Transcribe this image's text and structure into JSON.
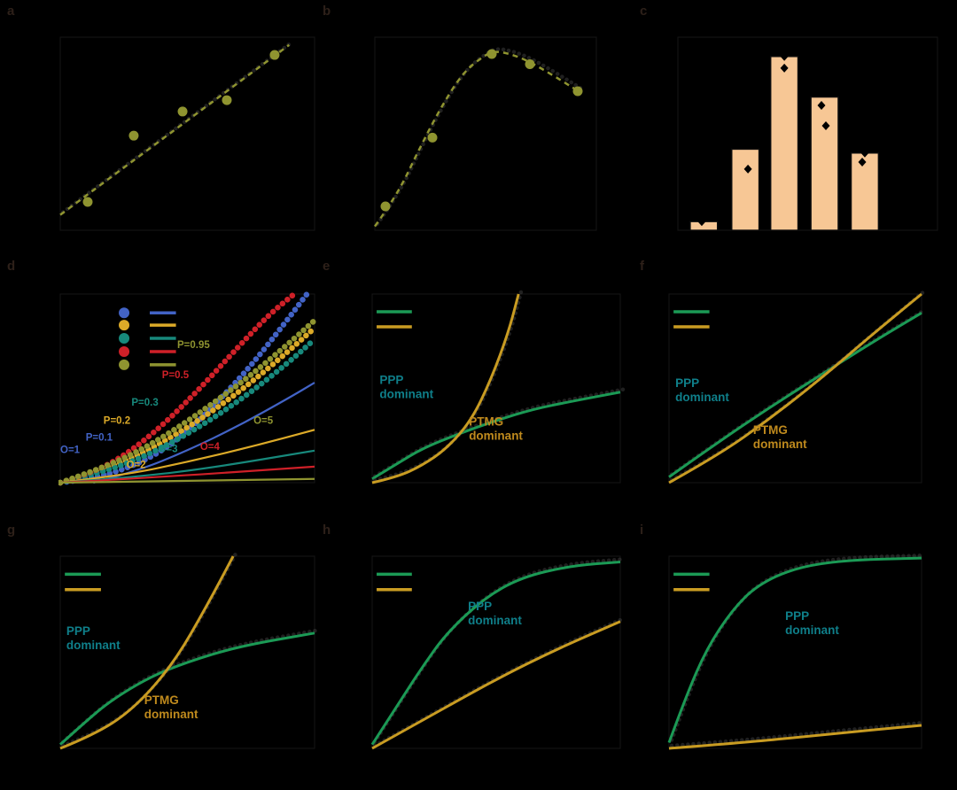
{
  "figure": {
    "background": "#000000",
    "frame_color": "#161616",
    "panel_letter_color": "#2d2019",
    "visibility_note": "Axis titles, tick labels and legend captions are rendered in black and are not visible against the black background; only colored graphics and colored text labels are visible."
  },
  "palette": {
    "olive": "#8f9430",
    "blue": "#4263c6",
    "yellow": "#dcaa28",
    "teal": "#17897c",
    "red": "#cf2028",
    "green_curve": "#1b9a55",
    "gold_curve": "#c99c22",
    "teal_label": "#0f7f8a",
    "gold_label": "#bf8a1d",
    "bar_fill": "#f7c795"
  },
  "chart_data": [
    {
      "panel": "a",
      "panel_letter": "a",
      "type": "scatter",
      "xlim": [
        0,
        1
      ],
      "ylim": [
        0,
        1
      ],
      "series": [
        {
          "name": "fit-line",
          "style": "line",
          "dash": "6 5",
          "ghost": true,
          "color": "#8f9430",
          "width": 2.5,
          "x": [
            0.0,
            0.45,
            0.9
          ],
          "y": [
            0.08,
            0.52,
            0.96
          ]
        },
        {
          "name": "data-points",
          "style": "markers",
          "color": "#8f9430",
          "size": 5.5,
          "x": [
            0.108,
            0.289,
            0.481,
            0.655,
            0.843
          ],
          "y": [
            0.147,
            0.49,
            0.615,
            0.674,
            0.908
          ]
        }
      ]
    },
    {
      "panel": "b",
      "panel_letter": "b",
      "type": "line",
      "xlim": [
        0,
        1
      ],
      "ylim": [
        0,
        1
      ],
      "series": [
        {
          "name": "kinetic-curve",
          "style": "line",
          "dash": "6 5",
          "ghost": true,
          "color": "#8f9430",
          "width": 2.5,
          "x": [
            0.0,
            0.1,
            0.2,
            0.3,
            0.4,
            0.5,
            0.55,
            0.65,
            0.75,
            0.85,
            0.92
          ],
          "y": [
            0.02,
            0.18,
            0.42,
            0.64,
            0.82,
            0.91,
            0.93,
            0.9,
            0.84,
            0.77,
            0.72
          ]
        },
        {
          "name": "data-points",
          "style": "markers",
          "color": "#8f9430",
          "size": 5.5,
          "x": [
            0.048,
            0.26,
            0.528,
            0.7,
            0.916
          ],
          "y": [
            0.124,
            0.48,
            0.913,
            0.86,
            0.72
          ]
        }
      ]
    },
    {
      "panel": "c",
      "panel_letter": "c",
      "type": "bar",
      "xlim": [
        0,
        1
      ],
      "ylim": [
        0,
        1
      ],
      "values": [
        0.045,
        0.42,
        0.9,
        0.69,
        0.4
      ],
      "bar_centers": [
        0.1,
        0.26,
        0.41,
        0.565,
        0.72
      ],
      "bar_width_frac": 0.105,
      "bar_color": "#f7c795",
      "bar_edge": "#0d0d0d",
      "point_marker": "diamond",
      "point_color": "#000000",
      "points": [
        {
          "x": 0.092,
          "y": 0.045
        },
        {
          "x": 0.27,
          "y": 0.317
        },
        {
          "x": 0.41,
          "y": 0.9
        },
        {
          "x": 0.41,
          "y": 0.84
        },
        {
          "x": 0.553,
          "y": 0.647
        },
        {
          "x": 0.57,
          "y": 0.541
        },
        {
          "x": 0.72,
          "y": 0.4
        },
        {
          "x": 0.71,
          "y": 0.353
        }
      ]
    },
    {
      "panel": "d",
      "panel_letter": "d",
      "type": "line",
      "xlim": [
        0,
        1
      ],
      "ylim": [
        0,
        1
      ],
      "series": [
        {
          "name": "blue-markers",
          "style": "dotline",
          "color": "#4263c6",
          "width": 6.5,
          "x": [
            0,
            0.12,
            0.25,
            0.38,
            0.5,
            0.62,
            0.75,
            0.88,
            0.97
          ],
          "y": [
            0,
            0.02,
            0.07,
            0.15,
            0.27,
            0.43,
            0.62,
            0.84,
            1.0
          ]
        },
        {
          "name": "yellow-markers",
          "style": "dotline",
          "color": "#dcaa28",
          "width": 6.5,
          "x": [
            0,
            0.15,
            0.3,
            0.45,
            0.6,
            0.75,
            0.9,
            1.0
          ],
          "y": [
            0,
            0.06,
            0.14,
            0.25,
            0.38,
            0.53,
            0.7,
            0.82
          ]
        },
        {
          "name": "teal-markers",
          "style": "dotline",
          "color": "#17897c",
          "width": 6.5,
          "x": [
            0,
            0.15,
            0.3,
            0.45,
            0.6,
            0.75,
            0.9,
            1.0
          ],
          "y": [
            0,
            0.05,
            0.12,
            0.22,
            0.34,
            0.48,
            0.64,
            0.76
          ]
        },
        {
          "name": "red-markers",
          "style": "dotline",
          "color": "#cf2028",
          "width": 6.5,
          "x": [
            0,
            0.12,
            0.25,
            0.4,
            0.55,
            0.7,
            0.82,
            0.92
          ],
          "y": [
            0,
            0.05,
            0.14,
            0.3,
            0.5,
            0.72,
            0.89,
            1.0
          ]
        },
        {
          "name": "olive-markers",
          "style": "dotline",
          "color": "#8f9430",
          "width": 6.5,
          "x": [
            0,
            0.15,
            0.3,
            0.45,
            0.6,
            0.75,
            0.9,
            1.0
          ],
          "y": [
            0,
            0.07,
            0.16,
            0.28,
            0.42,
            0.57,
            0.74,
            0.86
          ]
        },
        {
          "name": "blue-line",
          "style": "line",
          "color": "#4263c6",
          "width": 2.2,
          "x": [
            0.13,
            0.3,
            0.5,
            0.7,
            0.9,
            1.0
          ],
          "y": [
            0,
            0.06,
            0.17,
            0.3,
            0.45,
            0.53
          ]
        },
        {
          "name": "yellow-line",
          "style": "line",
          "color": "#dcaa28",
          "width": 2.2,
          "x": [
            0,
            0.25,
            0.5,
            0.75,
            1.0
          ],
          "y": [
            0,
            0.04,
            0.11,
            0.19,
            0.28
          ]
        },
        {
          "name": "teal-line",
          "style": "line",
          "color": "#17897c",
          "width": 2.2,
          "x": [
            0,
            0.3,
            0.6,
            1.0
          ],
          "y": [
            0,
            0.03,
            0.08,
            0.17
          ]
        },
        {
          "name": "red-line",
          "style": "line",
          "color": "#cf2028",
          "width": 2.2,
          "x": [
            0,
            0.4,
            1.0
          ],
          "y": [
            0,
            0.03,
            0.085
          ]
        },
        {
          "name": "olive-line",
          "style": "line",
          "color": "#8f9430",
          "width": 2.2,
          "x": [
            0,
            1.0
          ],
          "y": [
            0,
            0.02
          ]
        }
      ],
      "annotations": [
        {
          "text": "P=0.95",
          "color": "#8f9430",
          "x": 0.46,
          "y": 0.76
        },
        {
          "text": "P=0.5",
          "color": "#cf2028",
          "x": 0.4,
          "y": 0.6
        },
        {
          "text": "P=0.3",
          "color": "#17897c",
          "x": 0.28,
          "y": 0.455
        },
        {
          "text": "P=0.2",
          "color": "#dcaa28",
          "x": 0.17,
          "y": 0.36
        },
        {
          "text": "P=0.1",
          "color": "#4263c6",
          "x": 0.1,
          "y": 0.27
        },
        {
          "text": "O=1",
          "color": "#4263c6",
          "x": 0.0,
          "y": 0.205
        },
        {
          "text": "O=2",
          "color": "#dcaa28",
          "x": 0.26,
          "y": 0.125
        },
        {
          "text": "O=3",
          "color": "#17897c",
          "x": 0.385,
          "y": 0.21
        },
        {
          "text": "O=4",
          "color": "#cf2028",
          "x": 0.55,
          "y": 0.22
        },
        {
          "text": "O=5",
          "color": "#8f9430",
          "x": 0.76,
          "y": 0.36
        }
      ],
      "legend": {
        "style": "dots-and-lines",
        "dot_x": 0.251,
        "line_x": [
          0.352,
          0.455
        ],
        "rows_y": [
          0.9,
          0.835,
          0.765,
          0.695,
          0.625
        ],
        "colors": [
          "#4263c6",
          "#dcaa28",
          "#17897c",
          "#cf2028",
          "#8f9430"
        ]
      }
    },
    {
      "panel": "e",
      "panel_letter": "e",
      "type": "line",
      "xlim": [
        0,
        1
      ],
      "ylim": [
        0,
        1
      ],
      "series": [
        {
          "name": "green-curve",
          "style": "line",
          "ghost": true,
          "color": "#1b9a55",
          "width": 3,
          "x": [
            0,
            0.1,
            0.2,
            0.35,
            0.5,
            0.65,
            0.8,
            1.0
          ],
          "y": [
            0.02,
            0.1,
            0.18,
            0.26,
            0.33,
            0.39,
            0.43,
            0.48
          ]
        },
        {
          "name": "gold-curve",
          "style": "line",
          "ghost": true,
          "color": "#c99c22",
          "width": 3,
          "x": [
            0,
            0.1,
            0.2,
            0.3,
            0.4,
            0.48,
            0.55,
            0.59
          ],
          "y": [
            0.0,
            0.03,
            0.09,
            0.18,
            0.33,
            0.55,
            0.8,
            1.0
          ]
        }
      ],
      "labels": [
        {
          "lines": [
            "PPP",
            "dominant"
          ],
          "color": "#0f7f8a",
          "x": 0.03,
          "y": 0.58
        },
        {
          "lines": [
            "PTMG",
            "dominant"
          ],
          "color": "#bf8a1d",
          "x": 0.39,
          "y": 0.36
        }
      ],
      "legend": {
        "style": "lines",
        "x": [
          0.018,
          0.16
        ],
        "rows_y": [
          0.906,
          0.826
        ],
        "colors": [
          "#1b9a55",
          "#c99c22"
        ]
      }
    },
    {
      "panel": "f",
      "panel_letter": "f",
      "type": "line",
      "xlim": [
        0,
        1
      ],
      "ylim": [
        0,
        1
      ],
      "series": [
        {
          "name": "green-curve",
          "style": "line",
          "ghost": true,
          "color": "#1b9a55",
          "width": 3,
          "x": [
            0,
            0.2,
            0.4,
            0.6,
            0.8,
            1.0
          ],
          "y": [
            0.03,
            0.22,
            0.4,
            0.57,
            0.74,
            0.9
          ]
        },
        {
          "name": "gold-curve",
          "style": "line",
          "ghost": true,
          "color": "#c99c22",
          "width": 3,
          "x": [
            0,
            0.2,
            0.4,
            0.6,
            0.8,
            1.0
          ],
          "y": [
            0.0,
            0.15,
            0.34,
            0.55,
            0.78,
            1.0
          ]
        }
      ],
      "labels": [
        {
          "lines": [
            "PPP",
            "dominant"
          ],
          "color": "#0f7f8a",
          "x": 0.025,
          "y": 0.563
        },
        {
          "lines": [
            "PTMG",
            "dominant"
          ],
          "color": "#bf8a1d",
          "x": 0.333,
          "y": 0.315
        }
      ],
      "legend": {
        "style": "lines",
        "x": [
          0.018,
          0.16
        ],
        "rows_y": [
          0.906,
          0.826
        ],
        "colors": [
          "#1b9a55",
          "#c99c22"
        ]
      }
    },
    {
      "panel": "g",
      "panel_letter": "g",
      "type": "line",
      "xlim": [
        0,
        1
      ],
      "ylim": [
        0,
        1
      ],
      "series": [
        {
          "name": "green-curve",
          "style": "line",
          "ghost": true,
          "color": "#1b9a55",
          "width": 3,
          "x": [
            0,
            0.1,
            0.2,
            0.35,
            0.5,
            0.7,
            1.0
          ],
          "y": [
            0.02,
            0.14,
            0.25,
            0.37,
            0.45,
            0.53,
            0.6
          ]
        },
        {
          "name": "gold-curve",
          "style": "line",
          "ghost": true,
          "color": "#c99c22",
          "width": 3,
          "x": [
            0,
            0.15,
            0.3,
            0.45,
            0.58,
            0.68
          ],
          "y": [
            0.0,
            0.08,
            0.22,
            0.45,
            0.75,
            1.0
          ]
        }
      ],
      "labels": [
        {
          "lines": [
            "PPP",
            "dominant"
          ],
          "color": "#0f7f8a",
          "x": 0.024,
          "y": 0.645
        },
        {
          "lines": [
            "PTMG",
            "dominant"
          ],
          "color": "#bf8a1d",
          "x": 0.33,
          "y": 0.286
        }
      ],
      "legend": {
        "style": "lines",
        "x": [
          0.018,
          0.16
        ],
        "rows_y": [
          0.906,
          0.826
        ],
        "colors": [
          "#1b9a55",
          "#c99c22"
        ]
      }
    },
    {
      "panel": "h",
      "panel_letter": "h",
      "type": "line",
      "xlim": [
        0,
        1
      ],
      "ylim": [
        0,
        1
      ],
      "series": [
        {
          "name": "green-curve",
          "style": "line",
          "ghost": true,
          "color": "#1b9a55",
          "width": 3,
          "x": [
            0,
            0.1,
            0.2,
            0.3,
            0.45,
            0.6,
            0.8,
            1.0
          ],
          "y": [
            0.02,
            0.22,
            0.42,
            0.6,
            0.78,
            0.89,
            0.95,
            0.97
          ]
        },
        {
          "name": "gold-curve",
          "style": "line",
          "ghost": true,
          "color": "#c99c22",
          "width": 3,
          "x": [
            0,
            0.25,
            0.5,
            0.75,
            1.0
          ],
          "y": [
            0.0,
            0.18,
            0.36,
            0.52,
            0.66
          ]
        }
      ],
      "labels": [
        {
          "lines": [
            "PPP",
            "dominant"
          ],
          "color": "#0f7f8a",
          "x": 0.386,
          "y": 0.774
        }
      ],
      "legend": {
        "style": "lines",
        "x": [
          0.018,
          0.16
        ],
        "rows_y": [
          0.906,
          0.826
        ],
        "colors": [
          "#1b9a55",
          "#c99c22"
        ]
      }
    },
    {
      "panel": "i",
      "panel_letter": "i",
      "type": "line",
      "xlim": [
        0,
        1
      ],
      "ylim": [
        0,
        1
      ],
      "series": [
        {
          "name": "green-curve",
          "style": "line",
          "ghost": true,
          "color": "#1b9a55",
          "width": 3,
          "x": [
            0,
            0.07,
            0.15,
            0.25,
            0.35,
            0.5,
            0.7,
            1.0
          ],
          "y": [
            0.03,
            0.28,
            0.52,
            0.72,
            0.85,
            0.94,
            0.98,
            0.99
          ]
        },
        {
          "name": "gold-curve",
          "style": "line",
          "ghost": true,
          "color": "#c99c22",
          "width": 3,
          "x": [
            0,
            0.3,
            0.6,
            1.0
          ],
          "y": [
            0.0,
            0.03,
            0.07,
            0.12
          ]
        }
      ],
      "labels": [
        {
          "lines": [
            "PPP",
            "dominant"
          ],
          "color": "#0f7f8a",
          "x": 0.46,
          "y": 0.724
        }
      ],
      "legend": {
        "style": "lines",
        "x": [
          0.018,
          0.16
        ],
        "rows_y": [
          0.906,
          0.826
        ],
        "colors": [
          "#1b9a55",
          "#c99c22"
        ]
      }
    }
  ]
}
